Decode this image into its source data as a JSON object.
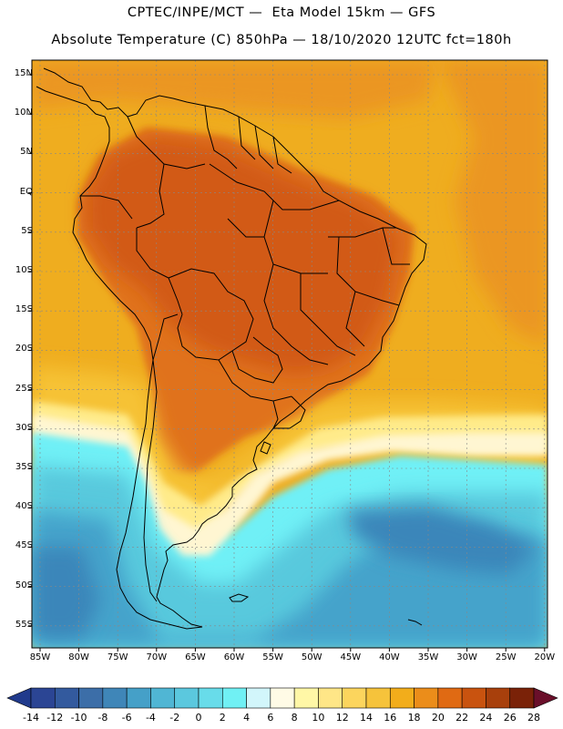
{
  "header": {
    "line1": "CPTEC/INPE/MCT —  Eta Model 15km — GFS",
    "line2": "Absolute Temperature (C) 850hPa — 18/10/2020 12UTC fct=180h"
  },
  "lat_labels": [
    "15N",
    "10N",
    "5N",
    "EQ",
    "5S",
    "10S",
    "15S",
    "20S",
    "25S",
    "30S",
    "35S",
    "40S",
    "45S",
    "50S",
    "55S"
  ],
  "lon_labels": [
    "85W",
    "80W",
    "75W",
    "70W",
    "65W",
    "60W",
    "55W",
    "50W",
    "45W",
    "40W",
    "35W",
    "30W",
    "25W",
    "20W"
  ],
  "colorbar": {
    "labels": [
      "-14",
      "-12",
      "-10",
      "-8",
      "-6",
      "-4",
      "-2",
      "0",
      "2",
      "4",
      "6",
      "8",
      "10",
      "12",
      "14",
      "16",
      "18",
      "20",
      "22",
      "24",
      "26",
      "28"
    ],
    "colors": [
      "#2b4594",
      "#335a9e",
      "#3c6ea8",
      "#3f86b8",
      "#45a0c8",
      "#50b6d4",
      "#5bc8de",
      "#68dcea",
      "#70f0f4",
      "#d2f6fb",
      "#fffbe6",
      "#fff7a6",
      "#ffe687",
      "#fcd55d",
      "#f6c33b",
      "#f2ad1b",
      "#eb8d1a",
      "#e06a13",
      "#c9530f",
      "#a8400c",
      "#7a2208"
    ],
    "under_color": "#203a8c",
    "over_color": "#6a0f2a"
  },
  "map_colors": {
    "ocean_warm": "#efad1f",
    "ocean_orange": "#eb9624",
    "land_warm": "#e0721c",
    "land_hot": "#d25a18",
    "mid_yellow": "#f6c234",
    "light_yellow": "#ffeb8a",
    "cream": "#fff6d2",
    "cyan": "#6ff0f6",
    "blue_light": "#59c9dd",
    "blue_mid": "#45a3cb",
    "blue_dark": "#3a86ba"
  }
}
